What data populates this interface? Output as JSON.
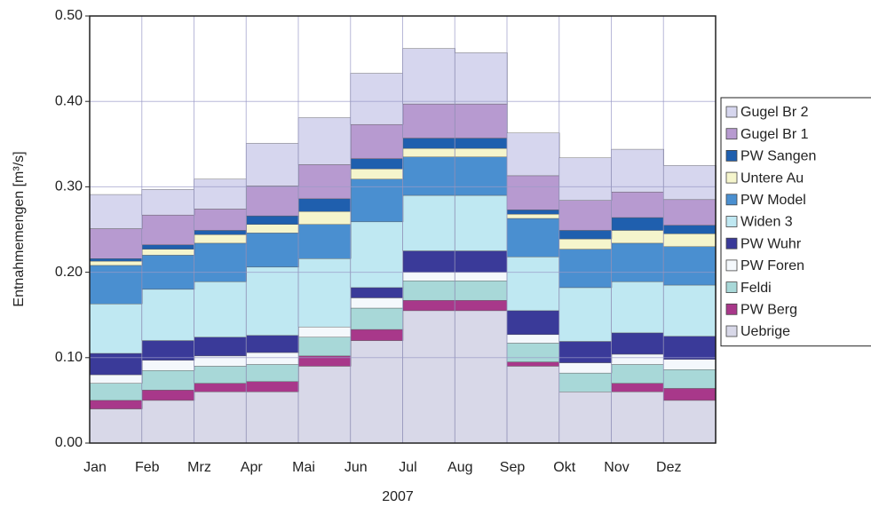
{
  "chart_data": {
    "type": "stacked_area",
    "xlabel": "2007",
    "ylabel": "Entnahmemengen [m³/s]",
    "categories": [
      "Jan",
      "Feb",
      "Mrz",
      "Apr",
      "Mai",
      "Jun",
      "Jul",
      "Aug",
      "Sep",
      "Okt",
      "Nov",
      "Dez"
    ],
    "ylim": [
      0,
      0.5
    ],
    "yticks": [
      {
        "value": 0,
        "label": "0.00"
      },
      {
        "value": 0.1,
        "label": "0.10"
      },
      {
        "value": 0.2,
        "label": "0.20"
      },
      {
        "value": 0.3,
        "label": "0.30"
      },
      {
        "value": 0.4,
        "label": "0.40"
      },
      {
        "value": 0.5,
        "label": "0.50"
      }
    ],
    "grid": true,
    "legend": "right",
    "series": [
      {
        "name": "Uebrige",
        "color": "#d8d8e8",
        "values": [
          0.04,
          0.05,
          0.06,
          0.06,
          0.09,
          0.12,
          0.155,
          0.155,
          0.09,
          0.06,
          0.06,
          0.05
        ]
      },
      {
        "name": "PW Berg",
        "color": "#a8388a",
        "values": [
          0.01,
          0.012,
          0.01,
          0.012,
          0.012,
          0.013,
          0.012,
          0.012,
          0.005,
          0,
          0.01,
          0.014
        ]
      },
      {
        "name": "Feldi",
        "color": "#a8d8d8",
        "values": [
          0.02,
          0.023,
          0.02,
          0.02,
          0.022,
          0.025,
          0.023,
          0.023,
          0.022,
          0.022,
          0.022,
          0.022
        ]
      },
      {
        "name": "PW Foren",
        "color": "#f4f8fc",
        "values": [
          0.01,
          0.012,
          0.012,
          0.014,
          0.012,
          0.012,
          0.01,
          0.01,
          0.01,
          0.012,
          0.012,
          0.012
        ]
      },
      {
        "name": "PW Wuhr",
        "color": "#3a3a99",
        "values": [
          0.025,
          0.023,
          0.022,
          0.02,
          0,
          0.012,
          0.025,
          0.025,
          0.028,
          0.025,
          0.025,
          0.027
        ]
      },
      {
        "name": "Widen 3",
        "color": "#bfe8f2",
        "values": [
          0.058,
          0.06,
          0.065,
          0.08,
          0.08,
          0.077,
          0.065,
          0.065,
          0.063,
          0.063,
          0.06,
          0.06
        ]
      },
      {
        "name": "PW Model",
        "color": "#4a8fd0",
        "values": [
          0.045,
          0.04,
          0.045,
          0.04,
          0.04,
          0.05,
          0.045,
          0.045,
          0.045,
          0.045,
          0.045,
          0.045
        ]
      },
      {
        "name": "Untere Au",
        "color": "#f5f5cc",
        "values": [
          0.005,
          0.007,
          0.01,
          0.01,
          0.015,
          0.012,
          0.01,
          0.01,
          0.005,
          0.012,
          0.015,
          0.015
        ]
      },
      {
        "name": "PW Sangen",
        "color": "#1f5fae",
        "values": [
          0.003,
          0.005,
          0.005,
          0.01,
          0.015,
          0.012,
          0.012,
          0.012,
          0.005,
          0.01,
          0.015,
          0.01
        ]
      },
      {
        "name": "Gugel Br 1",
        "color": "#b79ad0",
        "values": [
          0.035,
          0.035,
          0.025,
          0.035,
          0.04,
          0.04,
          0.04,
          0.04,
          0.04,
          0.035,
          0.03,
          0.03
        ]
      },
      {
        "name": "Gugel Br 2",
        "color": "#d6d6ee",
        "values": [
          0.04,
          0.03,
          0.035,
          0.05,
          0.055,
          0.06,
          0.065,
          0.06,
          0.05,
          0.05,
          0.05,
          0.04
        ]
      }
    ]
  }
}
